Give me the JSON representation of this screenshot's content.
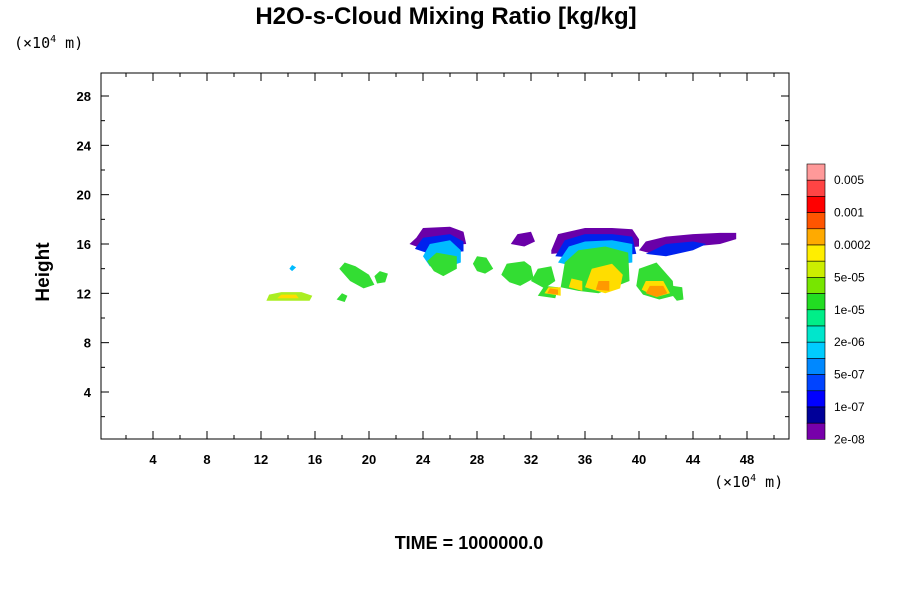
{
  "chart_data": {
    "type": "contour",
    "title": "H2O-s-Cloud Mixing Ratio [kg/kg]",
    "ylabel": "Height",
    "xlabel": "",
    "x_unit": {
      "prefix": "(×10",
      "exp": "4",
      "suffix": " m)"
    },
    "y_unit": {
      "prefix": "(×10",
      "exp": "4",
      "suffix": " m)"
    },
    "xlim": [
      0,
      51
    ],
    "ylim": [
      0,
      29.5
    ],
    "x_ticks": [
      4,
      8,
      12,
      16,
      20,
      24,
      28,
      32,
      36,
      40,
      44,
      48
    ],
    "y_ticks": [
      4,
      8,
      12,
      16,
      20,
      24,
      28
    ],
    "colorbar": {
      "labels": [
        "0.005",
        "0.001",
        "0.0002",
        "5e-05",
        "1e-05",
        "2e-06",
        "5e-07",
        "1e-07",
        "2e-08"
      ],
      "colors": [
        "#ff9999",
        "#ff4444",
        "#ff0000",
        "#ff5500",
        "#ffaa00",
        "#ffee00",
        "#ccee00",
        "#77e600",
        "#22dd22",
        "#00ee88",
        "#00e6cc",
        "#00ccff",
        "#0088ff",
        "#0044ff",
        "#0000ff",
        "#000099",
        "#7700aa"
      ]
    },
    "regions": [
      {
        "name": "ice-top-1",
        "level": 0,
        "poly": [
          [
            23,
            16.0
          ],
          [
            23.5,
            16.5
          ],
          [
            24,
            17.3
          ],
          [
            26,
            17.4
          ],
          [
            27,
            17.0
          ],
          [
            27.2,
            16.0
          ],
          [
            24.5,
            15.8
          ],
          [
            24,
            15.5
          ],
          [
            23.5,
            15.8
          ]
        ]
      },
      {
        "name": "ice-top-2",
        "level": 0,
        "poly": [
          [
            33.5,
            15.5
          ],
          [
            34,
            16.8
          ],
          [
            36,
            17.3
          ],
          [
            38,
            17.3
          ],
          [
            39.5,
            17.2
          ],
          [
            40,
            16.4
          ],
          [
            40,
            15.8
          ],
          [
            33.5,
            15.2
          ]
        ]
      },
      {
        "name": "ice-anvil",
        "level": 0,
        "poly": [
          [
            40,
            15.5
          ],
          [
            40.5,
            16.2
          ],
          [
            42,
            16.6
          ],
          [
            44,
            16.8
          ],
          [
            46,
            16.9
          ],
          [
            47.2,
            16.9
          ],
          [
            47.2,
            16.4
          ],
          [
            46,
            16.0
          ],
          [
            44,
            15.8
          ],
          [
            42,
            15.6
          ],
          [
            41,
            15.2
          ]
        ]
      },
      {
        "name": "ice-small-1",
        "level": 0,
        "poly": [
          [
            30.5,
            16.0
          ],
          [
            31,
            16.8
          ],
          [
            32,
            17.0
          ],
          [
            32.3,
            16.2
          ],
          [
            31.5,
            15.8
          ]
        ]
      },
      {
        "name": "blue-1",
        "level": 1,
        "poly": [
          [
            23.4,
            15.6
          ],
          [
            24,
            16.5
          ],
          [
            26,
            16.8
          ],
          [
            27,
            16.2
          ],
          [
            27,
            15.4
          ],
          [
            24.5,
            15.2
          ]
        ]
      },
      {
        "name": "blue-2",
        "level": 1,
        "poly": [
          [
            33.8,
            15.0
          ],
          [
            34.5,
            16.3
          ],
          [
            36,
            16.8
          ],
          [
            38,
            16.8
          ],
          [
            39.5,
            16.6
          ],
          [
            39.8,
            15.2
          ],
          [
            36,
            14.8
          ]
        ]
      },
      {
        "name": "blue-anvil",
        "level": 1,
        "poly": [
          [
            40.5,
            15.2
          ],
          [
            42,
            16.0
          ],
          [
            44,
            16.2
          ],
          [
            45,
            16.0
          ],
          [
            44,
            15.5
          ],
          [
            42,
            15.0
          ]
        ]
      },
      {
        "name": "cyan-1",
        "level": 2,
        "poly": [
          [
            24,
            15.0
          ],
          [
            24.5,
            16.0
          ],
          [
            26,
            16.3
          ],
          [
            26.8,
            15.5
          ],
          [
            26.8,
            14.5
          ],
          [
            25.5,
            14.0
          ],
          [
            24.5,
            14.2
          ]
        ]
      },
      {
        "name": "cyan-2",
        "level": 2,
        "poly": [
          [
            34,
            14.5
          ],
          [
            34.8,
            15.8
          ],
          [
            36,
            16.2
          ],
          [
            38,
            16.3
          ],
          [
            39.5,
            16.0
          ],
          [
            39.5,
            14.5
          ],
          [
            36,
            14.0
          ]
        ]
      },
      {
        "name": "green-1",
        "level": 3,
        "poly": [
          [
            24.3,
            14.6
          ],
          [
            25,
            15.3
          ],
          [
            26.5,
            15.0
          ],
          [
            26.5,
            14.0
          ],
          [
            25.5,
            13.4
          ],
          [
            24.8,
            13.8
          ]
        ]
      },
      {
        "name": "green-2",
        "level": 3,
        "poly": [
          [
            34.2,
            12.5
          ],
          [
            34.5,
            14.5
          ],
          [
            35.5,
            15.5
          ],
          [
            37.5,
            15.8
          ],
          [
            39.2,
            15.3
          ],
          [
            39.3,
            13.0
          ],
          [
            37,
            12.0
          ],
          [
            35.5,
            12.2
          ]
        ]
      },
      {
        "name": "green-3",
        "level": 3,
        "poly": [
          [
            29.8,
            13.5
          ],
          [
            30.2,
            14.4
          ],
          [
            31.5,
            14.6
          ],
          [
            32,
            14.2
          ],
          [
            32.2,
            13.2
          ],
          [
            31.2,
            12.6
          ],
          [
            30.4,
            12.9
          ]
        ]
      },
      {
        "name": "green-4",
        "level": 3,
        "poly": [
          [
            32,
            13.0
          ],
          [
            32.5,
            14.0
          ],
          [
            33.5,
            14.2
          ],
          [
            33.8,
            13.0
          ],
          [
            33,
            12.4
          ]
        ]
      },
      {
        "name": "green-5",
        "level": 3,
        "poly": [
          [
            27.7,
            14.4
          ],
          [
            28,
            15.0
          ],
          [
            28.7,
            14.9
          ],
          [
            29.2,
            14.0
          ],
          [
            28.6,
            13.6
          ],
          [
            28,
            13.8
          ]
        ]
      },
      {
        "name": "green-6",
        "level": 3,
        "poly": [
          [
            39.8,
            12.6
          ],
          [
            40,
            14.0
          ],
          [
            41.3,
            14.5
          ],
          [
            42.5,
            13.0
          ],
          [
            42.6,
            11.8
          ],
          [
            41.5,
            11.5
          ],
          [
            40.3,
            11.9
          ]
        ]
      },
      {
        "name": "green-7",
        "level": 3,
        "poly": [
          [
            32.5,
            11.8
          ],
          [
            33,
            12.6
          ],
          [
            34,
            12.5
          ],
          [
            33.8,
            11.6
          ]
        ]
      },
      {
        "name": "green-8",
        "level": 3,
        "poly": [
          [
            42.5,
            11.8
          ],
          [
            42.5,
            12.6
          ],
          [
            43.2,
            12.5
          ],
          [
            43.3,
            11.5
          ],
          [
            42.8,
            11.4
          ]
        ]
      },
      {
        "name": "green-small",
        "level": 3,
        "poly": [
          [
            17.6,
            11.5
          ],
          [
            18,
            12.0
          ],
          [
            18.4,
            11.8
          ],
          [
            18.2,
            11.3
          ]
        ]
      },
      {
        "name": "green-blob-1",
        "level": 4,
        "poly": [
          [
            12.4,
            11.4
          ],
          [
            12.6,
            11.9
          ],
          [
            13.5,
            12.1
          ],
          [
            15,
            12.1
          ],
          [
            15.8,
            11.8
          ],
          [
            15.6,
            11.4
          ],
          [
            14,
            11.4
          ]
        ]
      },
      {
        "name": "cloud-20-left",
        "level": 3,
        "poly": [
          [
            17.8,
            14.0
          ],
          [
            18.2,
            14.5
          ],
          [
            19,
            14.2
          ],
          [
            20,
            13.5
          ],
          [
            20.4,
            12.7
          ],
          [
            19.6,
            12.4
          ],
          [
            18.6,
            13.0
          ]
        ]
      },
      {
        "name": "cloud-21",
        "level": 3,
        "poly": [
          [
            20.4,
            13.4
          ],
          [
            20.8,
            13.8
          ],
          [
            21.4,
            13.6
          ],
          [
            21.2,
            12.9
          ],
          [
            20.6,
            12.8
          ]
        ]
      },
      {
        "name": "cloud-14",
        "level": 2,
        "poly": [
          [
            14.1,
            14.0
          ],
          [
            14.3,
            14.3
          ],
          [
            14.6,
            14.1
          ],
          [
            14.3,
            13.8
          ]
        ]
      },
      {
        "name": "yellow-1",
        "level": 5,
        "poly": [
          [
            36,
            12.5
          ],
          [
            36.5,
            14.0
          ],
          [
            38,
            14.4
          ],
          [
            38.8,
            13.5
          ],
          [
            38.6,
            12.4
          ],
          [
            37.5,
            12.0
          ]
        ]
      },
      {
        "name": "yellow-2",
        "level": 5,
        "poly": [
          [
            40.2,
            12.3
          ],
          [
            40.5,
            13.0
          ],
          [
            41.8,
            13.0
          ],
          [
            42.3,
            12.0
          ],
          [
            41.3,
            11.7
          ]
        ]
      },
      {
        "name": "yellow-3",
        "level": 5,
        "poly": [
          [
            33,
            12.0
          ],
          [
            33.3,
            12.5
          ],
          [
            34.2,
            12.5
          ],
          [
            34.2,
            11.8
          ]
        ]
      },
      {
        "name": "yellow-4",
        "level": 5,
        "poly": [
          [
            34.8,
            12.5
          ],
          [
            35,
            13.2
          ],
          [
            35.8,
            13.0
          ],
          [
            35.8,
            12.2
          ]
        ]
      },
      {
        "name": "yellow-5",
        "level": 5,
        "poly": [
          [
            13.2,
            11.6
          ],
          [
            13.5,
            11.9
          ],
          [
            14.6,
            11.9
          ],
          [
            14.8,
            11.6
          ]
        ]
      },
      {
        "name": "orange-1",
        "level": 6,
        "poly": [
          [
            40.5,
            12.0
          ],
          [
            40.8,
            12.6
          ],
          [
            41.8,
            12.6
          ],
          [
            42.1,
            12.0
          ],
          [
            41.3,
            11.7
          ]
        ]
      },
      {
        "name": "orange-2",
        "level": 6,
        "poly": [
          [
            33.2,
            12.0
          ],
          [
            33.4,
            12.4
          ],
          [
            34,
            12.3
          ],
          [
            34,
            11.9
          ]
        ]
      },
      {
        "name": "orange-3",
        "level": 6,
        "poly": [
          [
            36.8,
            12.3
          ],
          [
            37,
            13.0
          ],
          [
            37.8,
            13.0
          ],
          [
            37.8,
            12.2
          ]
        ]
      }
    ],
    "level_colors": [
      "#6a00a8",
      "#0022ee",
      "#00bbff",
      "#33dd33",
      "#aaee22",
      "#ffdd00",
      "#ff9900"
    ]
  },
  "footer": {
    "time_label": "TIME = 1000000.0"
  }
}
